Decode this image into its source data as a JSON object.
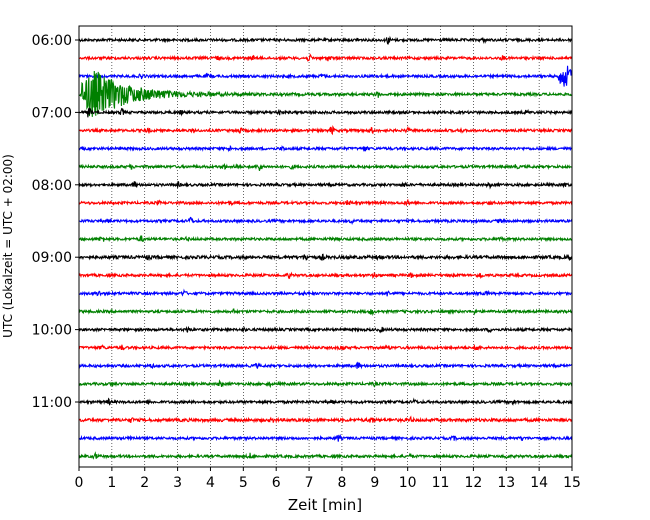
{
  "chart_data": {
    "type": "line",
    "title": "",
    "xlabel": "Zeit  [min]",
    "ylabel": "UTC (Lokalzeit = UTC + 02:00)",
    "xlim": [
      0,
      15
    ],
    "x_ticks": [
      0,
      1,
      2,
      3,
      4,
      5,
      6,
      7,
      8,
      9,
      10,
      11,
      12,
      13,
      14,
      15
    ],
    "grid": "vertical-dotted",
    "y_tick_labels": [
      "06:00",
      "07:00",
      "08:00",
      "09:00",
      "10:00",
      "11:00"
    ],
    "y_tick_rows": [
      0,
      4,
      8,
      12,
      16,
      20
    ],
    "trace_minutes": 15,
    "colors": [
      "#000000",
      "#ff0000",
      "#0000ff",
      "#008000"
    ],
    "traces": [
      {
        "start": "06:00",
        "amplitude": 0.25,
        "events": [
          {
            "t": 9.4,
            "amp": 0.7
          },
          {
            "t": 8.5,
            "amp": 0.35
          },
          {
            "t": 12.3,
            "amp": 0.3
          }
        ]
      },
      {
        "start": "06:15",
        "amplitude": 0.25,
        "events": [
          {
            "t": 7.0,
            "amp": 0.6
          },
          {
            "t": 7.6,
            "amp": 0.5
          },
          {
            "t": 5.3,
            "amp": 0.3
          },
          {
            "t": 12.9,
            "amp": 0.35
          },
          {
            "t": 4.2,
            "amp": 0.3
          }
        ]
      },
      {
        "start": "06:30",
        "amplitude": 0.25,
        "events": [
          {
            "t": 1.9,
            "amp": 0.35
          },
          {
            "t": 3.9,
            "amp": 0.3
          },
          {
            "t": 9.0,
            "amp": 0.35
          },
          {
            "t": 7.4,
            "amp": 0.3
          },
          {
            "t": 14.7,
            "amp": 2.2,
            "kind": "quake"
          }
        ]
      },
      {
        "start": "06:45",
        "amplitude": 0.25,
        "events": [
          {
            "t": 0.35,
            "amp": 3.5,
            "kind": "quake"
          },
          {
            "t": 9.1,
            "amp": 0.5
          },
          {
            "t": 0.05,
            "amp": 2.6,
            "kind": "tail"
          }
        ]
      },
      {
        "start": "07:00",
        "amplitude": 0.25,
        "events": [
          {
            "t": 1.3,
            "amp": 0.7
          },
          {
            "t": 0.3,
            "amp": 1.0
          },
          {
            "t": 3.1,
            "amp": 0.3
          },
          {
            "t": 6.1,
            "amp": 0.4
          },
          {
            "t": 13.6,
            "amp": 0.3
          }
        ]
      },
      {
        "start": "07:15",
        "amplitude": 0.25,
        "events": [
          {
            "t": 2.1,
            "amp": 0.4
          },
          {
            "t": 3.5,
            "amp": 0.35
          },
          {
            "t": 4.9,
            "amp": 0.4
          },
          {
            "t": 7.7,
            "amp": 0.7
          },
          {
            "t": 8.9,
            "amp": 0.45
          },
          {
            "t": 10.0,
            "amp": 0.35
          },
          {
            "t": 11.6,
            "amp": 0.3
          }
        ]
      },
      {
        "start": "07:30",
        "amplitude": 0.25,
        "events": [
          {
            "t": 8.7,
            "amp": 0.5
          },
          {
            "t": 6.2,
            "amp": 0.3
          },
          {
            "t": 4.6,
            "amp": 0.3
          }
        ]
      },
      {
        "start": "07:45",
        "amplitude": 0.25,
        "events": [
          {
            "t": 5.5,
            "amp": 0.8
          },
          {
            "t": 4.4,
            "amp": 0.45
          },
          {
            "t": 4.8,
            "amp": 0.35
          },
          {
            "t": 6.5,
            "amp": 0.35
          },
          {
            "t": 1.6,
            "amp": 0.3
          },
          {
            "t": 13.3,
            "amp": 0.3
          }
        ]
      },
      {
        "start": "08:00",
        "amplitude": 0.25,
        "events": [
          {
            "t": 1.7,
            "amp": 0.6
          },
          {
            "t": 3.0,
            "amp": 0.45
          },
          {
            "t": 12.5,
            "amp": 0.35
          },
          {
            "t": 14.8,
            "amp": 0.35
          },
          {
            "t": 9.9,
            "amp": 0.3
          }
        ]
      },
      {
        "start": "08:15",
        "amplitude": 0.25,
        "events": [
          {
            "t": 8.2,
            "amp": 0.5
          },
          {
            "t": 10.0,
            "amp": 0.45
          },
          {
            "t": 4.6,
            "amp": 0.3
          },
          {
            "t": 2.4,
            "amp": 0.3
          },
          {
            "t": 12.5,
            "amp": 0.25
          }
        ]
      },
      {
        "start": "08:30",
        "amplitude": 0.25,
        "events": [
          {
            "t": 3.4,
            "amp": 0.7
          },
          {
            "t": 8.3,
            "amp": 0.3
          },
          {
            "t": 12.8,
            "amp": 0.3
          },
          {
            "t": 0.9,
            "amp": 0.25
          }
        ]
      },
      {
        "start": "08:45",
        "amplitude": 0.25,
        "events": [
          {
            "t": 0.7,
            "amp": 0.5
          },
          {
            "t": 1.9,
            "amp": 0.5
          },
          {
            "t": 3.3,
            "amp": 0.3
          },
          {
            "t": 7.7,
            "amp": 0.3
          },
          {
            "t": 12.8,
            "amp": 0.3
          }
        ]
      },
      {
        "start": "09:00",
        "amplitude": 0.3,
        "events": [
          {
            "t": 6.9,
            "amp": 0.55
          },
          {
            "t": 7.4,
            "amp": 0.45
          },
          {
            "t": 14.9,
            "amp": 0.6
          },
          {
            "t": 2.1,
            "amp": 0.3
          },
          {
            "t": 9.1,
            "amp": 0.3
          }
        ]
      },
      {
        "start": "09:15",
        "amplitude": 0.25,
        "events": [
          {
            "t": 6.4,
            "amp": 0.45
          },
          {
            "t": 12.2,
            "amp": 0.5
          },
          {
            "t": 9.0,
            "amp": 0.3
          },
          {
            "t": 10.1,
            "amp": 0.3
          }
        ]
      },
      {
        "start": "09:30",
        "amplitude": 0.25,
        "events": [
          {
            "t": 0.6,
            "amp": 0.45
          },
          {
            "t": 3.2,
            "amp": 0.45
          },
          {
            "t": 9.4,
            "amp": 0.45
          },
          {
            "t": 12.4,
            "amp": 0.35
          },
          {
            "t": 6.8,
            "amp": 0.3
          }
        ]
      },
      {
        "start": "09:45",
        "amplitude": 0.25,
        "events": [
          {
            "t": 8.9,
            "amp": 0.45
          },
          {
            "t": 4.7,
            "amp": 0.3
          },
          {
            "t": 12.0,
            "amp": 0.3
          }
        ]
      },
      {
        "start": "10:00",
        "amplitude": 0.25,
        "events": [
          {
            "t": 3.3,
            "amp": 0.45
          },
          {
            "t": 9.2,
            "amp": 0.35
          },
          {
            "t": 5.0,
            "amp": 0.3
          },
          {
            "t": 12.5,
            "amp": 0.3
          }
        ]
      },
      {
        "start": "10:15",
        "amplitude": 0.25,
        "events": [
          {
            "t": 12.1,
            "amp": 0.55
          },
          {
            "t": 8.0,
            "amp": 0.4
          },
          {
            "t": 1.3,
            "amp": 0.4
          },
          {
            "t": 0.7,
            "amp": 0.35
          },
          {
            "t": 9.4,
            "amp": 0.3
          }
        ]
      },
      {
        "start": "10:30",
        "amplitude": 0.25,
        "events": [
          {
            "t": 8.5,
            "amp": 0.55
          },
          {
            "t": 2.2,
            "amp": 0.3
          },
          {
            "t": 5.4,
            "amp": 0.3
          }
        ]
      },
      {
        "start": "10:45",
        "amplitude": 0.25,
        "events": [
          {
            "t": 4.3,
            "amp": 0.5
          },
          {
            "t": 1.0,
            "amp": 0.3
          },
          {
            "t": 5.8,
            "amp": 0.3
          },
          {
            "t": 9.0,
            "amp": 0.3
          }
        ]
      },
      {
        "start": "11:00",
        "amplitude": 0.25,
        "events": [
          {
            "t": 0.9,
            "amp": 0.45
          },
          {
            "t": 13.2,
            "amp": 0.5
          },
          {
            "t": 10.2,
            "amp": 0.35
          },
          {
            "t": 2.1,
            "amp": 0.3
          },
          {
            "t": 7.7,
            "amp": 0.3
          }
        ]
      },
      {
        "start": "11:15",
        "amplitude": 0.3,
        "events": [
          {
            "t": 8.9,
            "amp": 0.6
          },
          {
            "t": 1.6,
            "amp": 0.35
          },
          {
            "t": 10.1,
            "amp": 0.35
          },
          {
            "t": 5.9,
            "amp": 0.3
          }
        ]
      },
      {
        "start": "11:30",
        "amplitude": 0.25,
        "events": [
          {
            "t": 7.9,
            "amp": 0.55
          },
          {
            "t": 1.6,
            "amp": 0.4
          },
          {
            "t": 11.4,
            "amp": 0.3
          },
          {
            "t": 13.5,
            "amp": 0.3
          }
        ]
      },
      {
        "start": "11:45",
        "amplitude": 0.25,
        "events": [
          {
            "t": 0.5,
            "amp": 0.5
          },
          {
            "t": 5.2,
            "amp": 0.45
          },
          {
            "t": 10.1,
            "amp": 0.3
          },
          {
            "t": 13.0,
            "amp": 0.3
          }
        ]
      }
    ]
  }
}
